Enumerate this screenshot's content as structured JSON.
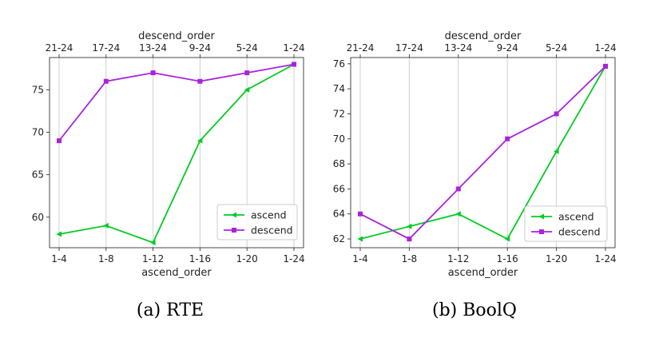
{
  "chart_data": [
    {
      "type": "line",
      "caption": "(a)  RTE",
      "xlabel": "ascend_order",
      "x2label": "descend_order",
      "categories": [
        "1-4",
        "1-8",
        "1-12",
        "1-16",
        "1-20",
        "1-24"
      ],
      "top_categories": [
        "21-24",
        "17-24",
        "13-24",
        "9-24",
        "5-24",
        "1-24"
      ],
      "ylim": [
        56.4,
        78.8
      ],
      "yticks": [
        60,
        65,
        70,
        75
      ],
      "grid": "vertical",
      "legend_position": "lower-right",
      "series": [
        {
          "name": "ascend",
          "color": "#00cc22",
          "marker": "triangle-left",
          "values": [
            58,
            59,
            57,
            69,
            75,
            78
          ]
        },
        {
          "name": "descend",
          "color": "#aa22dd",
          "marker": "square",
          "values": [
            69,
            76,
            77,
            76,
            77,
            78
          ]
        }
      ]
    },
    {
      "type": "line",
      "caption": "(b)  BoolQ",
      "xlabel": "ascend_order",
      "x2label": "descend_order",
      "categories": [
        "1-4",
        "1-8",
        "1-12",
        "1-16",
        "1-20",
        "1-24"
      ],
      "top_categories": [
        "21-24",
        "17-24",
        "13-24",
        "9-24",
        "5-24",
        "1-24"
      ],
      "ylim": [
        61.3,
        76.5
      ],
      "yticks": [
        62,
        64,
        66,
        68,
        70,
        72,
        74,
        76
      ],
      "grid": "vertical",
      "legend_position": "lower-right",
      "series": [
        {
          "name": "ascend",
          "color": "#00cc22",
          "marker": "triangle-left",
          "values": [
            62,
            63,
            64,
            62,
            69,
            75.8
          ]
        },
        {
          "name": "descend",
          "color": "#aa22dd",
          "marker": "square",
          "values": [
            64,
            62,
            66,
            70,
            72,
            75.8
          ]
        }
      ]
    }
  ]
}
